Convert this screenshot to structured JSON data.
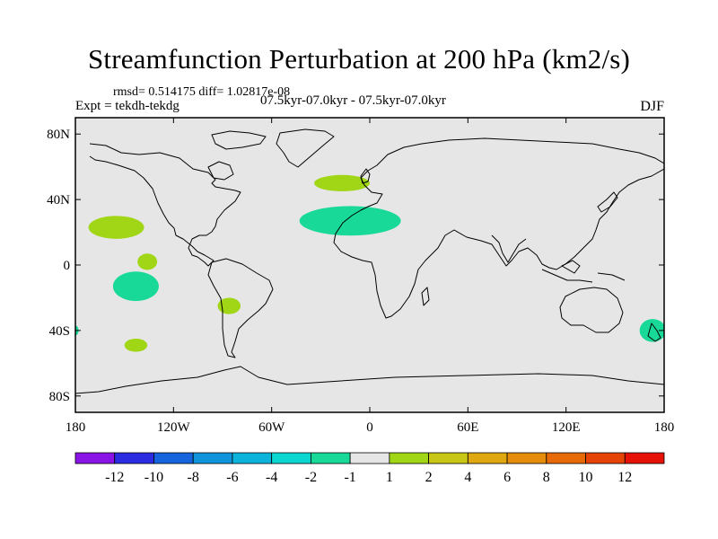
{
  "title": "Streamfunction Perturbation at 200 hPa (km2/s)",
  "stats": "rmsd= 0.514175 diff= 1.02817e-08",
  "experiment": "Expt = tekdh-tekdg",
  "period": "07.5kyr-07.0kyr - 07.5kyr-07.0kyr",
  "season": "DJF",
  "chart_data": {
    "type": "filled-contour-map",
    "projection": "cylindrical equidistant",
    "xlim": [
      -180,
      180
    ],
    "ylim": [
      -90,
      90
    ],
    "x_ticks": [
      {
        "value": -180,
        "label": "180"
      },
      {
        "value": -120,
        "label": "120W"
      },
      {
        "value": -60,
        "label": "60W"
      },
      {
        "value": 0,
        "label": "0"
      },
      {
        "value": 60,
        "label": "60E"
      },
      {
        "value": 120,
        "label": "120E"
      },
      {
        "value": 180,
        "label": "180"
      }
    ],
    "y_ticks": [
      {
        "value": 80,
        "label": "80N"
      },
      {
        "value": 40,
        "label": "40N"
      },
      {
        "value": 0,
        "label": "0"
      },
      {
        "value": -40,
        "label": "40S"
      },
      {
        "value": -80,
        "label": "80S"
      }
    ],
    "background_level": "-1 to 1",
    "anomalies": [
      {
        "name": "north-atlantic-positive",
        "lon": -17,
        "lat": 50,
        "dlon": 17,
        "dlat": 5,
        "bin": "1 to 2",
        "color": "#a0d616"
      },
      {
        "name": "atlantic-sahara-negative",
        "lon": -12,
        "lat": 27,
        "dlon": 31,
        "dlat": 9,
        "bin": "-2 to -1",
        "color": "#18d998"
      },
      {
        "name": "central-pacific-north-positive",
        "lon": -155,
        "lat": 23,
        "dlon": 17,
        "dlat": 7,
        "bin": "1 to 2",
        "color": "#a0d616"
      },
      {
        "name": "east-pacific-equatorial-positive",
        "lon": -136,
        "lat": 2,
        "dlon": 6,
        "dlat": 5,
        "bin": "1 to 2",
        "color": "#a0d616"
      },
      {
        "name": "south-pacific-negative",
        "lon": -143,
        "lat": -13,
        "dlon": 14,
        "dlat": 9,
        "bin": "-2 to -1",
        "color": "#18d998"
      },
      {
        "name": "southeast-pacific-positive",
        "lon": -86,
        "lat": -25,
        "dlon": 7,
        "dlat": 5,
        "bin": "1 to 2",
        "color": "#a0d616"
      },
      {
        "name": "south-pacific-midlat-positive",
        "lon": -143,
        "lat": -49,
        "dlon": 7,
        "dlat": 4,
        "bin": "1 to 2",
        "color": "#a0d616"
      },
      {
        "name": "new-zealand-negative",
        "lon": 173,
        "lat": -40,
        "dlon": 8,
        "dlat": 7,
        "bin": "-2 to -1",
        "color": "#18d998"
      },
      {
        "name": "dateline-edge-negative",
        "lon": -180,
        "lat": -40,
        "dlon": 2,
        "dlat": 3,
        "bin": "-2 to -1",
        "color": "#18d998"
      }
    ],
    "colorbar": {
      "labels": [
        "-12",
        "-10",
        "-8",
        "-6",
        "-4",
        "-2",
        "-1",
        "1",
        "2",
        "4",
        "6",
        "8",
        "10",
        "12"
      ],
      "colors": [
        "#8a14e6",
        "#2c2ce0",
        "#1664de",
        "#0f94dc",
        "#0cb4dc",
        "#0cd6d0",
        "#18d998",
        "#e6e6e6",
        "#a0d616",
        "#c8c616",
        "#e0a810",
        "#e68c0c",
        "#e66a08",
        "#e64406",
        "#e61208"
      ]
    }
  }
}
